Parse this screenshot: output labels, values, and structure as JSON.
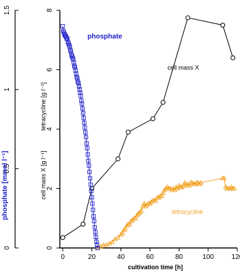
{
  "chart_data": {
    "type": "line",
    "title": "",
    "xlabel": "cultivation time [h]",
    "xlim": [
      -2,
      120
    ],
    "xticks": [
      0,
      20,
      40,
      60,
      80,
      100,
      120
    ],
    "axes": {
      "phosphate": {
        "label": "phosphate [mmol l⁻¹]",
        "lim": [
          0,
          1.5
        ],
        "ticks": [
          0,
          0.5,
          1,
          1.5
        ],
        "tick_labels": [
          "0",
          "0.5",
          "1",
          "1.5"
        ],
        "color": "#2020c8"
      },
      "mass": {
        "label_tetracycline": "tetracycline [g l⁻¹]",
        "label_cellmass": "cell mass X [g l⁻¹]",
        "lim": [
          0,
          8
        ],
        "ticks": [
          0,
          2,
          4,
          6,
          8
        ],
        "color": "#000000"
      }
    },
    "series": [
      {
        "name": "cell mass X",
        "axis": "mass",
        "color": "#000000",
        "marker": "circle",
        "x": [
          0,
          14,
          20,
          38,
          45,
          62,
          69,
          86,
          110,
          117
        ],
        "y": [
          0.35,
          0.8,
          2.0,
          3.0,
          3.9,
          4.35,
          4.9,
          7.75,
          7.5,
          6.4
        ]
      },
      {
        "name": "tetracycline",
        "axis": "mass",
        "color": "#f0a020",
        "marker": "triangle",
        "x": [
          24,
          26,
          28,
          30,
          32,
          34,
          36,
          38,
          40,
          41,
          42,
          43,
          44,
          45,
          46,
          47,
          48,
          49,
          50,
          51,
          52,
          53,
          54,
          55,
          56,
          57,
          58,
          59,
          60,
          61,
          62,
          63,
          64,
          65,
          66,
          67,
          68,
          69,
          70,
          71,
          72,
          73,
          74,
          75,
          76,
          77,
          78,
          79,
          80,
          81,
          82,
          83,
          84,
          85,
          86,
          87,
          88,
          89,
          90,
          91,
          92,
          93,
          94,
          95,
          110,
          111,
          112,
          113,
          114,
          115,
          116,
          117,
          118
        ],
        "y": [
          0.0,
          0.05,
          0.1,
          0.1,
          0.15,
          0.2,
          0.3,
          0.35,
          0.45,
          0.5,
          0.6,
          0.65,
          0.75,
          0.8,
          0.8,
          0.9,
          0.95,
          1.0,
          1.0,
          1.1,
          1.15,
          1.2,
          1.25,
          1.4,
          1.5,
          1.4,
          1.45,
          1.5,
          1.5,
          1.55,
          1.6,
          1.6,
          1.6,
          1.7,
          1.7,
          1.75,
          1.75,
          1.85,
          1.95,
          2.0,
          2.05,
          2.0,
          2.0,
          1.95,
          2.0,
          1.95,
          2.05,
          2.0,
          2.1,
          2.05,
          2.05,
          2.1,
          2.2,
          2.1,
          2.15,
          2.1,
          2.2,
          2.2,
          2.15,
          2.15,
          2.2,
          2.2,
          2.15,
          2.2,
          2.35,
          2.35,
          2.05,
          2.0,
          2.0,
          2.0,
          2.05,
          2.0,
          2.0
        ]
      },
      {
        "name": "phosphate",
        "axis": "phosphate",
        "color": "#2020c8",
        "marker": "square",
        "x": [
          0,
          0.4,
          0.8,
          1.2,
          1.6,
          2.0,
          2.4,
          2.8,
          3.2,
          3.6,
          4.0,
          4.4,
          4.8,
          5.2,
          5.6,
          6.0,
          6.4,
          6.8,
          7.2,
          7.6,
          8.0,
          8.4,
          8.8,
          9.2,
          9.6,
          10.0,
          10.4,
          10.8,
          11.2,
          11.6,
          12.0,
          12.4,
          12.8,
          13.2,
          13.6,
          14.0,
          14.4,
          14.8,
          15.2,
          15.6,
          16.0,
          16.4,
          16.8,
          17.2,
          17.6,
          18.0,
          18.4,
          18.8,
          19.2,
          19.6,
          20.0,
          20.4,
          20.8,
          21.2,
          21.6,
          22.0,
          22.4,
          22.8,
          23.2,
          23.6,
          24.0
        ],
        "y": [
          1.4,
          1.37,
          1.36,
          1.35,
          1.34,
          1.34,
          1.33,
          1.32,
          1.32,
          1.3,
          1.29,
          1.28,
          1.27,
          1.25,
          1.24,
          1.22,
          1.21,
          1.2,
          1.19,
          1.17,
          1.15,
          1.14,
          1.12,
          1.1,
          1.08,
          1.07,
          1.05,
          1.04,
          1.02,
          1.0,
          0.98,
          0.96,
          0.93,
          0.91,
          0.88,
          0.85,
          0.82,
          0.79,
          0.76,
          0.73,
          0.7,
          0.66,
          0.63,
          0.59,
          0.55,
          0.52,
          0.48,
          0.44,
          0.4,
          0.36,
          0.32,
          0.28,
          0.24,
          0.2,
          0.17,
          0.13,
          0.1,
          0.07,
          0.04,
          0.02,
          0.0
        ]
      }
    ],
    "annotations": [
      {
        "text": "phosphate",
        "color": "#2020c8",
        "x": 17,
        "y_axis": "mass",
        "y": 7.05
      },
      {
        "text": "cell mass X",
        "color": "#000000",
        "x": 72,
        "y_axis": "mass",
        "y": 6.0
      },
      {
        "text": "tetrocycline",
        "color": "#f0a020",
        "x": 75,
        "y_axis": "mass",
        "y": 1.15
      }
    ],
    "grid": false,
    "legend": "none"
  }
}
